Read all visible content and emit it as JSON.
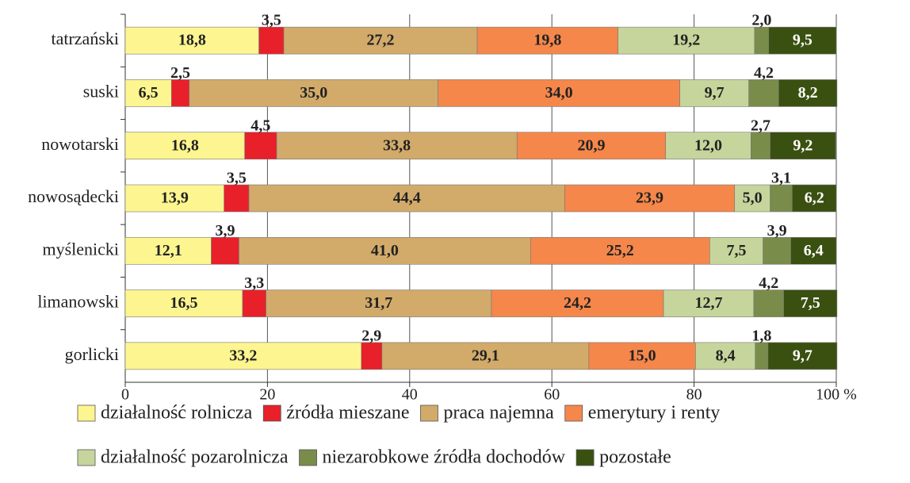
{
  "chart_data": {
    "type": "stacked_bar_horizontal",
    "categories": [
      "tatrzański",
      "suski",
      "nowotarski",
      "nowosądecki",
      "myślenicki",
      "limanowski",
      "gorlicki"
    ],
    "series": [
      {
        "name": "działalność rolnicza",
        "color": "#fdf58f",
        "values": [
          18.8,
          6.5,
          16.8,
          13.9,
          12.1,
          16.5,
          33.2
        ],
        "value_labels": [
          "18,8",
          "6,5",
          "16,8",
          "13,9",
          "12,1",
          "16,5",
          "33,2"
        ]
      },
      {
        "name": "źródła mieszane",
        "color": "#e8202a",
        "values": [
          3.5,
          2.5,
          4.5,
          3.5,
          3.9,
          3.3,
          2.9
        ],
        "value_labels": [
          "3,5",
          "2,5",
          "4,5",
          "3,5",
          "3,9",
          "3,3",
          "2,9"
        ]
      },
      {
        "name": "praca najemna",
        "color": "#d2aa6a",
        "values": [
          27.2,
          35.0,
          33.8,
          44.4,
          41.0,
          31.7,
          29.1
        ],
        "value_labels": [
          "27,2",
          "35,0",
          "33,8",
          "44,4",
          "41,0",
          "31,7",
          "29,1"
        ]
      },
      {
        "name": "emerytury i renty",
        "color": "#f5874b",
        "values": [
          19.8,
          34.0,
          20.9,
          23.9,
          25.2,
          24.2,
          15.0
        ],
        "value_labels": [
          "19,8",
          "34,0",
          "20,9",
          "23,9",
          "25,2",
          "24,2",
          "15,0"
        ]
      },
      {
        "name": "działalność pozarolnicza",
        "color": "#c6d59b",
        "values": [
          19.2,
          9.7,
          12.0,
          5.0,
          7.5,
          12.7,
          8.4
        ],
        "value_labels": [
          "19,2",
          "9,7",
          "12,0",
          "5,0",
          "7,5",
          "12,7",
          "8,4"
        ]
      },
      {
        "name": "niezarobkowe źródła dochodów",
        "color": "#7a8c4a",
        "values": [
          2.0,
          4.2,
          2.7,
          3.1,
          3.9,
          4.2,
          1.8
        ],
        "value_labels": [
          "2,0",
          "4,2",
          "2,7",
          "3,1",
          "3,9",
          "4,2",
          "1,8"
        ]
      },
      {
        "name": "pozostałe",
        "color": "#3a5010",
        "values": [
          9.5,
          8.2,
          9.2,
          6.2,
          6.4,
          7.5,
          9.7
        ],
        "value_labels": [
          "9,5",
          "8,2",
          "9,2",
          "6,2",
          "6,4",
          "7,5",
          "9,7"
        ]
      }
    ],
    "xlim": [
      0,
      100
    ],
    "xticks": [
      0,
      20,
      40,
      60,
      80,
      {
        "value": 100,
        "label": "100 %"
      }
    ],
    "grid": true
  }
}
